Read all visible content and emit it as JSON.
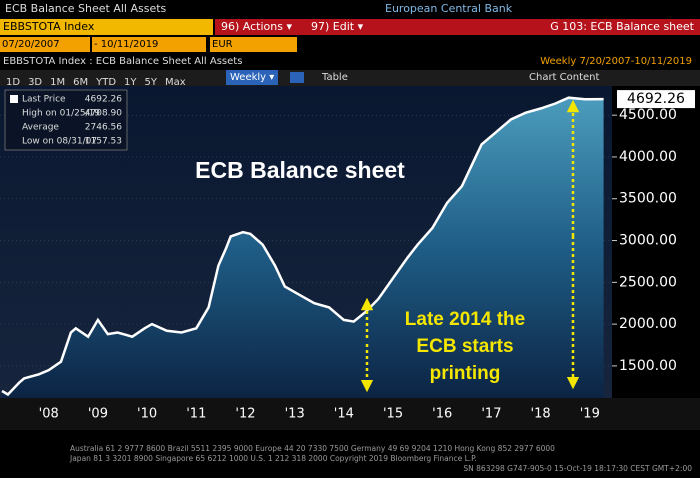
{
  "ui": {
    "window_title": "ECB Balance Sheet All Assets",
    "source": "European Central Bank",
    "ticker": "EBBSTOTA Index",
    "actions": "96) Actions ▾",
    "edit": "97) Edit ▾",
    "page": "G 103: ECB Balance sheet",
    "start_date": "07/20/2007",
    "end_date": "- 10/11/2019",
    "currency": "EUR",
    "security": "EBBSTOTA Index : ECB Balance Sheet All Assets",
    "period": "Weekly  7/20/2007-10/11/2019",
    "buttons": [
      "1D",
      "3D",
      "1M",
      "6M",
      "YTD",
      "1Y",
      "5Y",
      "Max"
    ],
    "frequency": "Weekly ▾",
    "table": "Table",
    "chart_content": "Chart Content",
    "footer": [
      "Australia 61 2 9777 8600 Brazil 5511 2395 9000 Europe 44 20 7330 7500 Germany 49 69 9204 1210 Hong Kong 852 2977 6000",
      "Japan 81 3 3201 8900        Singapore 65 6212 1000        U.S. 1 212 318 2000        Copyright 2019 Bloomberg Finance L.P.",
      "SN 863298 G747-905-0 15-Oct-19 18:17:30 CEST GMT+2:00"
    ]
  },
  "chart_data": {
    "type": "area",
    "title": "ECB Balance sheet",
    "annotation": [
      "Late 2014 the",
      "ECB starts",
      "printing"
    ],
    "legend": [
      {
        "label": "Last Price",
        "value": "4692.26"
      },
      {
        "label": "High on 01/25/19",
        "value": "4708.90"
      },
      {
        "label": "Average",
        "value": "2746.56"
      },
      {
        "label": "Low on 08/31/07",
        "value": "1157.53"
      }
    ],
    "color": "#ffffff",
    "x": [
      2007.55,
      2007.67,
      2007.9,
      2008.0,
      2008.3,
      2008.5,
      2008.75,
      2008.95,
      2009.05,
      2009.3,
      2009.5,
      2009.7,
      2009.9,
      2010.2,
      2010.45,
      2010.6,
      2010.9,
      2011.2,
      2011.5,
      2011.75,
      2011.95,
      2012.1,
      2012.2,
      2012.45,
      2012.6,
      2012.85,
      2013.1,
      2013.3,
      2013.6,
      2013.9,
      2014.2,
      2014.5,
      2014.7,
      2014.95,
      2015.2,
      2015.5,
      2015.8,
      2016.0,
      2016.3,
      2016.6,
      2016.9,
      2017.1,
      2017.3,
      2017.6,
      2017.9,
      2018.2,
      2018.5,
      2018.8,
      2019.07,
      2019.4,
      2019.78
    ],
    "values": [
      1200,
      1157.53,
      1300,
      1350,
      1400,
      1450,
      1550,
      1900,
      1950,
      1850,
      2050,
      1880,
      1900,
      1850,
      1950,
      2000,
      1920,
      1900,
      1950,
      2200,
      2700,
      2900,
      3050,
      3100,
      3080,
      2950,
      2700,
      2450,
      2350,
      2250,
      2200,
      2050,
      2030,
      2150,
      2300,
      2550,
      2800,
      2950,
      3150,
      3450,
      3650,
      3900,
      4150,
      4300,
      4450,
      4530,
      4580,
      4640,
      4708.9,
      4690,
      4692.26
    ],
    "xlim": [
      2007.55,
      2019.85
    ],
    "xticks": [
      {
        "value": 2008.5,
        "label": "'08"
      },
      {
        "value": 2009.5,
        "label": "'09"
      },
      {
        "value": 2010.5,
        "label": "'10"
      },
      {
        "value": 2011.5,
        "label": "'11"
      },
      {
        "value": 2012.5,
        "label": "'12"
      },
      {
        "value": 2013.5,
        "label": "'13"
      },
      {
        "value": 2014.5,
        "label": "'14"
      },
      {
        "value": 2015.5,
        "label": "'15"
      },
      {
        "value": 2016.5,
        "label": "'16"
      },
      {
        "value": 2017.5,
        "label": "'17"
      },
      {
        "value": 2018.5,
        "label": "'18"
      },
      {
        "value": 2019.5,
        "label": "'19"
      }
    ],
    "ylim": [
      1140,
      4825
    ],
    "yticks": [
      {
        "value": 1500,
        "label": "1500.00"
      },
      {
        "value": 2000,
        "label": "2000.00"
      },
      {
        "value": 2500,
        "label": "2500.00"
      },
      {
        "value": 3000,
        "label": "3000.00"
      },
      {
        "value": 3500,
        "label": "3500.00"
      },
      {
        "value": 4000,
        "label": "4000.00"
      },
      {
        "value": 4500,
        "label": "4500.00"
      }
    ],
    "last_label": "4692.26"
  }
}
